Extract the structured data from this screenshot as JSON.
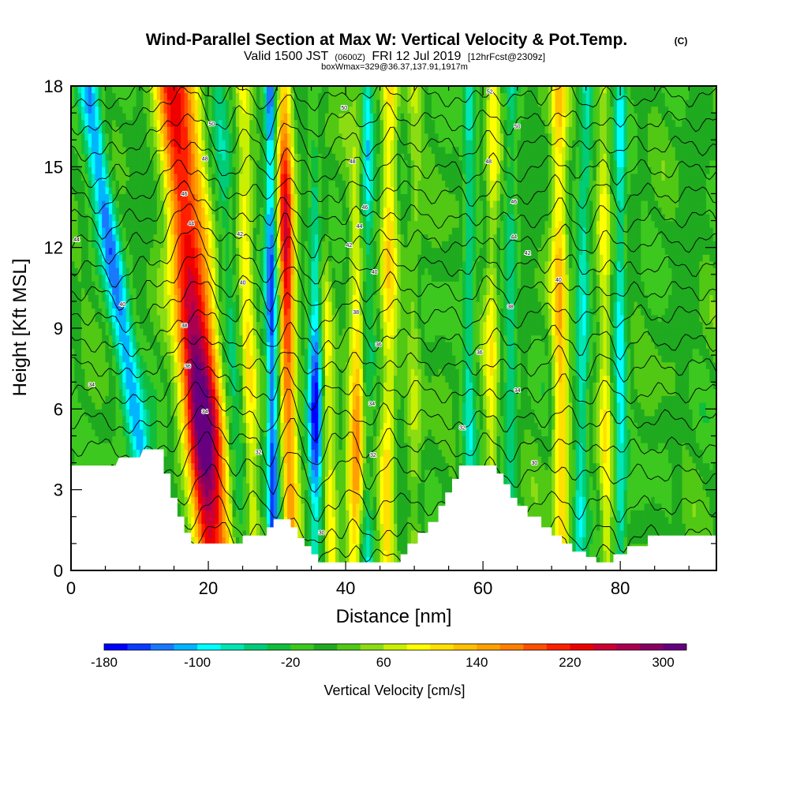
{
  "header": {
    "title": "Wind-Parallel Section at Max W: Vertical Velocity & Pot.Temp.",
    "copyright": "(C)",
    "valid_prefix": "Valid 1500 JST",
    "valid_utc": "(0600Z)",
    "valid_date": "FRI 12 Jul 2019",
    "forecast": "[12hrFcst@2309z]",
    "boxinfo": "boxWmax=329@36.37,137.91,1917m"
  },
  "colorbar": {
    "title": "Vertical Velocity [cm/s]",
    "levels": [
      -180,
      -160,
      -140,
      -120,
      -100,
      -80,
      -60,
      -40,
      -20,
      0,
      20,
      40,
      60,
      80,
      100,
      120,
      140,
      160,
      180,
      200,
      220,
      240,
      260,
      280,
      300,
      320
    ],
    "colors": [
      "#0000ff",
      "#0a3cff",
      "#1a78ff",
      "#00b4ff",
      "#00ffff",
      "#00e6b4",
      "#00cc78",
      "#11be3c",
      "#3cc81e",
      "#1faa1f",
      "#50c814",
      "#8cdc14",
      "#c8f000",
      "#ffff00",
      "#ffe000",
      "#ffc000",
      "#ffa000",
      "#ff8000",
      "#ff5000",
      "#ff2000",
      "#ee0000",
      "#cc0033",
      "#aa0050",
      "#880060",
      "#660080"
    ],
    "tick_labels": [
      "-180",
      "-100",
      "-20",
      "60",
      "140",
      "220",
      "300"
    ],
    "tick_values": [
      -180,
      -100,
      -20,
      60,
      140,
      220,
      300
    ]
  },
  "chart_data": {
    "type": "heatmap",
    "title": "Wind-Parallel Section at Max W: Vertical Velocity & Pot.Temp.",
    "xlabel": "Distance [nm]",
    "ylabel": "Height [Kft MSL]",
    "xlim": [
      0,
      94
    ],
    "ylim": [
      0,
      18
    ],
    "x_ticks": [
      0,
      20,
      40,
      60,
      80
    ],
    "y_ticks": [
      0,
      3,
      6,
      9,
      12,
      15,
      18
    ],
    "variable": "Vertical Velocity [cm/s]",
    "contour_variable": "Potential temperature",
    "velocity_bands": [
      {
        "x_low": 12.5,
        "x_high": 2.5,
        "slope": 10,
        "width": 1.6,
        "value": -130
      },
      {
        "x_low": 21.5,
        "x_high": 16.5,
        "slope": 5,
        "width": 2.6,
        "value": 230,
        "peak_y": 6.5
      },
      {
        "x_low": 20.0,
        "x_high": 14.0,
        "slope": 6,
        "width": 2.0,
        "value": 140
      },
      {
        "x_low": 26.5,
        "x_high": 25.0,
        "slope": 1.5,
        "width": 1.2,
        "value": 80
      },
      {
        "x_low": 25.0,
        "x_high": 21.5,
        "slope": 3.5,
        "width": 1.4,
        "value": -60
      },
      {
        "x_low": 29.5,
        "x_high": 29.0,
        "slope": 0.5,
        "width": 0.9,
        "value": -150
      },
      {
        "x_low": 32.0,
        "x_high": 31.0,
        "slope": 1,
        "width": 1.2,
        "value": 240,
        "peak_y": 12
      },
      {
        "x_low": 35.5,
        "x_high": 36.0,
        "slope": -0.5,
        "width": 1.1,
        "value": -170,
        "peak_y": 7
      },
      {
        "x_low": 38.0,
        "x_high": 36.0,
        "slope": 2,
        "width": 1.0,
        "value": 80
      },
      {
        "x_low": 41.5,
        "x_high": 42.5,
        "slope": -1,
        "width": 1.4,
        "value": 170,
        "peak_y": 5
      },
      {
        "x_low": 43.0,
        "x_high": 43.0,
        "slope": 0,
        "width": 1.1,
        "value": -170,
        "peak_y": 16
      },
      {
        "x_low": 46.0,
        "x_high": 46.5,
        "slope": -0.5,
        "width": 1.2,
        "value": 90
      },
      {
        "x_low": 50.0,
        "x_high": 50.0,
        "slope": 0,
        "width": 1.0,
        "value": 40
      },
      {
        "x_low": 58.0,
        "x_high": 58.0,
        "slope": 0,
        "width": 0.9,
        "value": -70
      },
      {
        "x_low": 61.0,
        "x_high": 61.5,
        "slope": -0.5,
        "width": 1.0,
        "value": 70
      },
      {
        "x_low": 64.0,
        "x_high": 64.0,
        "slope": 0,
        "width": 1.0,
        "value": -60
      },
      {
        "x_low": 71.5,
        "x_high": 71.0,
        "slope": 0.5,
        "width": 1.2,
        "value": 110
      },
      {
        "x_low": 74.0,
        "x_high": 75.0,
        "slope": -1,
        "width": 1.0,
        "value": -80
      },
      {
        "x_low": 78.0,
        "x_high": 77.5,
        "slope": 0.5,
        "width": 1.0,
        "value": 70
      },
      {
        "x_low": 80.0,
        "x_high": 80.0,
        "slope": 0,
        "width": 0.9,
        "value": -90
      }
    ],
    "terrain": [
      [
        0,
        3.9
      ],
      [
        6.5,
        3.9
      ],
      [
        7,
        4.2
      ],
      [
        10,
        4.2
      ],
      [
        10.5,
        4.5
      ],
      [
        13.5,
        4.5
      ],
      [
        13.5,
        3.6
      ],
      [
        14.5,
        3.6
      ],
      [
        14.5,
        2.7
      ],
      [
        15.5,
        2.7
      ],
      [
        15.5,
        2.0
      ],
      [
        16.5,
        2.0
      ],
      [
        16.5,
        1.4
      ],
      [
        17.5,
        1.4
      ],
      [
        17.5,
        1.0
      ],
      [
        25,
        1.0
      ],
      [
        25,
        1.3
      ],
      [
        28.5,
        1.3
      ],
      [
        28.5,
        1.6
      ],
      [
        29.5,
        1.6
      ],
      [
        29.5,
        1.9
      ],
      [
        32,
        1.9
      ],
      [
        32,
        1.6
      ],
      [
        33,
        1.6
      ],
      [
        33,
        1.2
      ],
      [
        34,
        1.2
      ],
      [
        34,
        0.9
      ],
      [
        35,
        0.9
      ],
      [
        35,
        0.6
      ],
      [
        36,
        0.6
      ],
      [
        36,
        0.3
      ],
      [
        48,
        0.3
      ],
      [
        48,
        0.6
      ],
      [
        49,
        0.6
      ],
      [
        49,
        1.0
      ],
      [
        50.5,
        1.0
      ],
      [
        50.5,
        1.4
      ],
      [
        52,
        1.4
      ],
      [
        52,
        1.8
      ],
      [
        53.5,
        1.8
      ],
      [
        53.5,
        2.4
      ],
      [
        54.5,
        2.4
      ],
      [
        54.5,
        2.9
      ],
      [
        55.5,
        2.9
      ],
      [
        55.5,
        3.4
      ],
      [
        56.5,
        3.4
      ],
      [
        56.5,
        3.9
      ],
      [
        60,
        3.9
      ],
      [
        60.5,
        3.9
      ],
      [
        62,
        3.9
      ],
      [
        62,
        3.6
      ],
      [
        63,
        3.6
      ],
      [
        63,
        3.2
      ],
      [
        64,
        3.2
      ],
      [
        64,
        2.7
      ],
      [
        65,
        2.7
      ],
      [
        65,
        2.4
      ],
      [
        66.5,
        2.4
      ],
      [
        66.5,
        2.0
      ],
      [
        68.5,
        2.0
      ],
      [
        68.5,
        1.6
      ],
      [
        70,
        1.6
      ],
      [
        70,
        1.3
      ],
      [
        71.5,
        1.3
      ],
      [
        71.5,
        1.0
      ],
      [
        73,
        1.0
      ],
      [
        73,
        0.7
      ],
      [
        75,
        0.7
      ],
      [
        75,
        0.5
      ],
      [
        76.5,
        0.5
      ],
      [
        76.5,
        0.3
      ],
      [
        79,
        0.3
      ],
      [
        79,
        0.6
      ],
      [
        81,
        0.6
      ],
      [
        81,
        0.9
      ],
      [
        84,
        0.9
      ],
      [
        84,
        1.3
      ],
      [
        94,
        1.3
      ],
      [
        94,
        0
      ]
    ],
    "theta_contours": [
      {
        "label": "30",
        "base": 0.5
      },
      {
        "label": "30",
        "base": 1.3
      },
      {
        "label": "32",
        "base": 2.4
      },
      {
        "label": "32",
        "base": 3.6
      },
      {
        "label": "32",
        "base": 4.6
      },
      {
        "label": "34",
        "base": 5.6
      },
      {
        "label": "34",
        "base": 6.6
      },
      {
        "label": "34",
        "base": 7.6
      },
      {
        "label": "36",
        "base": 8.5
      },
      {
        "label": "36",
        "base": 9.5
      },
      {
        "label": "38",
        "base": 10.4
      },
      {
        "label": "40",
        "base": 11.3
      },
      {
        "label": "42",
        "base": 12.2
      },
      {
        "label": "44",
        "base": 13.1
      },
      {
        "label": "46",
        "base": 14.0
      },
      {
        "label": "48",
        "base": 14.9
      },
      {
        "label": "50",
        "base": 15.8
      },
      {
        "label": "52",
        "base": 16.7
      },
      {
        "label": "54",
        "base": 17.6
      }
    ],
    "contour_labels": [
      {
        "text": "44",
        "x": 0.8,
        "y": 12.3
      },
      {
        "text": "40",
        "x": 7.5,
        "y": 9.9
      },
      {
        "text": "34",
        "x": 3.0,
        "y": 6.9
      },
      {
        "text": "50",
        "x": 20.5,
        "y": 16.6
      },
      {
        "text": "48",
        "x": 19.5,
        "y": 15.3
      },
      {
        "text": "46",
        "x": 16.5,
        "y": 14.0
      },
      {
        "text": "44",
        "x": 17.5,
        "y": 12.9
      },
      {
        "text": "42",
        "x": 24.6,
        "y": 12.5
      },
      {
        "text": "40",
        "x": 25.0,
        "y": 10.7
      },
      {
        "text": "38",
        "x": 16.5,
        "y": 9.1
      },
      {
        "text": "36",
        "x": 17.0,
        "y": 7.6
      },
      {
        "text": "34",
        "x": 19.5,
        "y": 5.9
      },
      {
        "text": "32",
        "x": 27.3,
        "y": 4.4
      },
      {
        "text": "30",
        "x": 36.5,
        "y": 1.4
      },
      {
        "text": "50",
        "x": 39.8,
        "y": 17.2
      },
      {
        "text": "48",
        "x": 41.0,
        "y": 15.2
      },
      {
        "text": "46",
        "x": 42.8,
        "y": 13.5
      },
      {
        "text": "44",
        "x": 42.0,
        "y": 12.8
      },
      {
        "text": "42",
        "x": 40.5,
        "y": 12.1
      },
      {
        "text": "40",
        "x": 44.2,
        "y": 11.1
      },
      {
        "text": "38",
        "x": 41.5,
        "y": 9.6
      },
      {
        "text": "36",
        "x": 44.8,
        "y": 8.4
      },
      {
        "text": "34",
        "x": 43.8,
        "y": 6.2
      },
      {
        "text": "32",
        "x": 44.0,
        "y": 4.3
      },
      {
        "text": "52",
        "x": 61.0,
        "y": 17.8
      },
      {
        "text": "50",
        "x": 65.0,
        "y": 16.5
      },
      {
        "text": "48",
        "x": 60.8,
        "y": 15.2
      },
      {
        "text": "46",
        "x": 64.5,
        "y": 13.7
      },
      {
        "text": "44",
        "x": 64.5,
        "y": 12.4
      },
      {
        "text": "42",
        "x": 66.5,
        "y": 11.8
      },
      {
        "text": "40",
        "x": 71.0,
        "y": 10.8
      },
      {
        "text": "38",
        "x": 64.0,
        "y": 9.8
      },
      {
        "text": "36",
        "x": 59.5,
        "y": 8.1
      },
      {
        "text": "34",
        "x": 65.0,
        "y": 6.7
      },
      {
        "text": "32",
        "x": 57.0,
        "y": 5.3
      },
      {
        "text": "30",
        "x": 67.5,
        "y": 4.0
      }
    ]
  }
}
